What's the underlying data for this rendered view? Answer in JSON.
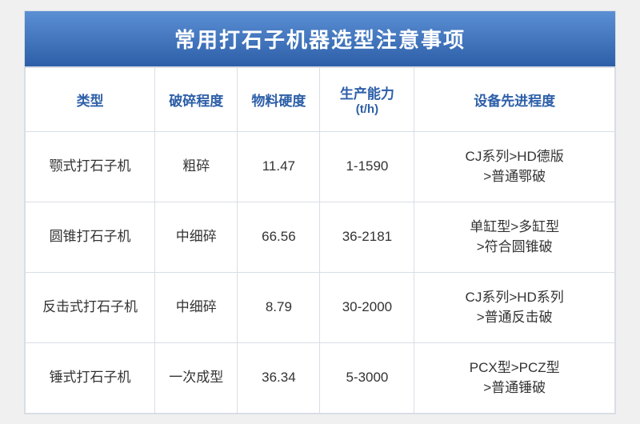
{
  "title": "常用打石子机器选型注意事项",
  "colors": {
    "header_gradient_top": "#5b8fd4",
    "header_gradient_bottom": "#2d5fa8",
    "header_text": "#ffffff",
    "th_text": "#2d5fa8",
    "cell_text": "#333333",
    "border": "#d8dde6",
    "background": "#ffffff"
  },
  "typography": {
    "title_fontsize": 26,
    "th_fontsize": 17,
    "td_fontsize": 17,
    "subline_fontsize": 15,
    "font_family": "Microsoft YaHei"
  },
  "columns": [
    {
      "key": "type",
      "label": "类型",
      "width_pct": 22
    },
    {
      "key": "crush",
      "label": "破碎程度",
      "width_pct": 14
    },
    {
      "key": "hardness",
      "label": "物料硬度",
      "width_pct": 14
    },
    {
      "key": "capacity",
      "label": "生产能力",
      "sublabel": "(t/h)",
      "width_pct": 16
    },
    {
      "key": "advance",
      "label": "设备先进程度",
      "width_pct": 34
    }
  ],
  "rows": [
    {
      "type": "颚式打石子机",
      "crush": "粗碎",
      "hardness": "11.47",
      "capacity": "1-1590",
      "adv_l1": "CJ系列>HD德版",
      "adv_l2": ">普通鄂破"
    },
    {
      "type": "圆锥打石子机",
      "crush": "中细碎",
      "hardness": "66.56",
      "capacity": "36-2181",
      "adv_l1": "单缸型>多缸型",
      "adv_l2": ">符合圆锥破"
    },
    {
      "type": "反击式打石子机",
      "crush": "中细碎",
      "hardness": "8.79",
      "capacity": "30-2000",
      "adv_l1": "CJ系列>HD系列",
      "adv_l2": ">普通反击破"
    },
    {
      "type": "锤式打石子机",
      "crush": "一次成型",
      "hardness": "36.34",
      "capacity": "5-3000",
      "adv_l1": "PCX型>PCZ型",
      "adv_l2": ">普通锤破"
    }
  ]
}
